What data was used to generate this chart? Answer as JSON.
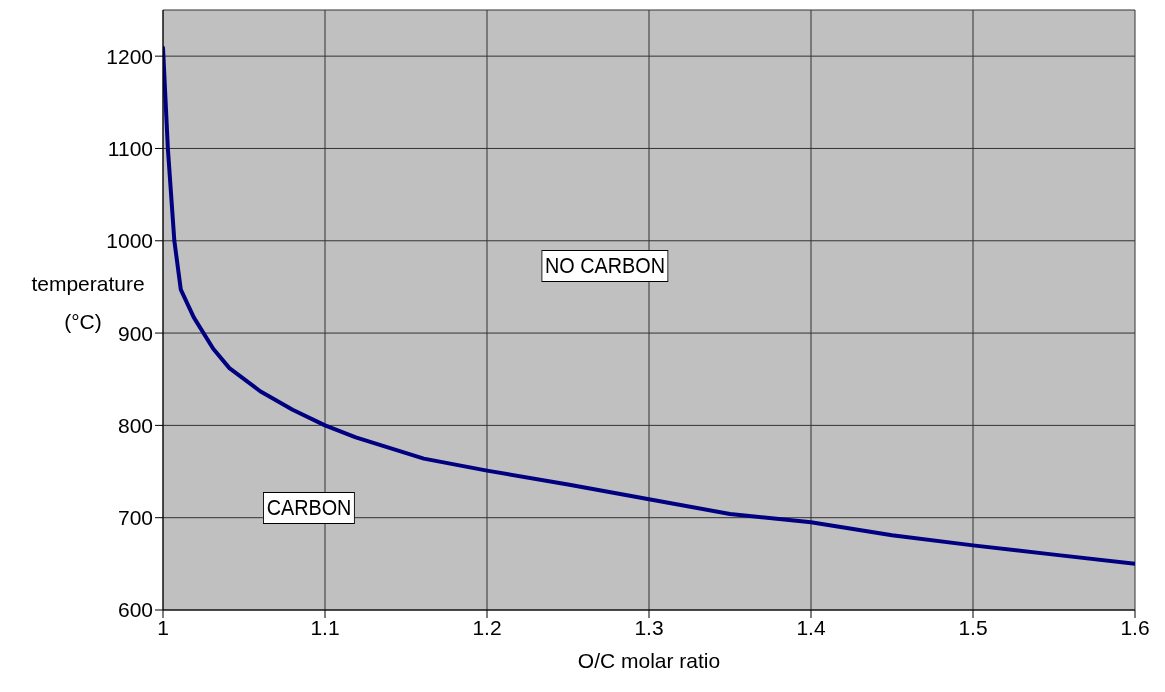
{
  "chart_data": {
    "type": "line",
    "xlabel": "O/C molar ratio",
    "ylabel": "temperature (°C)",
    "x": [
      1.0,
      1.003,
      1.007,
      1.011,
      1.019,
      1.031,
      1.041,
      1.06,
      1.08,
      1.1,
      1.119,
      1.161,
      1.2,
      1.25,
      1.3,
      1.35,
      1.4,
      1.45,
      1.5,
      1.55,
      1.6
    ],
    "series": [
      {
        "color": "#000080",
        "values": [
          1209,
          1100,
          1000,
          947,
          917,
          883,
          862,
          837,
          817,
          800,
          787,
          764,
          751,
          736,
          720,
          704,
          695,
          681,
          670,
          660,
          650
        ]
      }
    ],
    "xlim": [
      1,
      1.6
    ],
    "xticks": [
      1,
      1.1,
      1.2,
      1.3,
      1.4,
      1.5,
      1.6
    ],
    "ylim": [
      600,
      1250
    ],
    "yticks": [
      600,
      700,
      800,
      900,
      1000,
      1100,
      1200
    ],
    "grid": true,
    "marker": "none",
    "line_style": "solid",
    "annotations": [
      "NO CARBON",
      "CARBON"
    ]
  }
}
